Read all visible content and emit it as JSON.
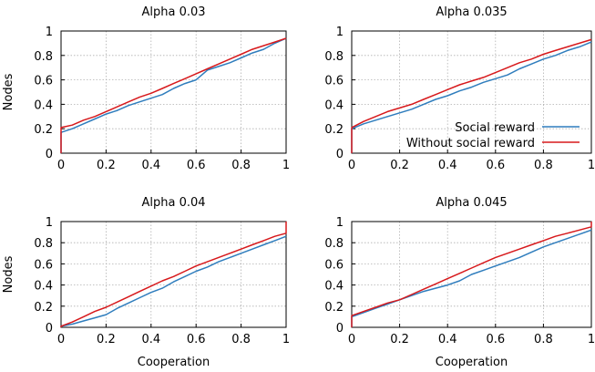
{
  "chart_data": [
    {
      "type": "line",
      "title": "Alpha 0.03",
      "xlabel": "",
      "ylabel": "Nodes",
      "xlim": [
        0,
        1
      ],
      "ylim": [
        0,
        1
      ],
      "xticks": [
        "0",
        "0.2",
        "0.4",
        "0.6",
        "0.8",
        "1"
      ],
      "yticks": [
        "0",
        "0.2",
        "0.4",
        "0.6",
        "0.8",
        "1"
      ],
      "grid": true,
      "series": [
        {
          "name": "Social reward",
          "color": "#2f7dbd",
          "points": [
            [
              0,
              0
            ],
            [
              0,
              0.17
            ],
            [
              0.05,
              0.2
            ],
            [
              0.1,
              0.24
            ],
            [
              0.15,
              0.28
            ],
            [
              0.2,
              0.32
            ],
            [
              0.25,
              0.35
            ],
            [
              0.3,
              0.39
            ],
            [
              0.35,
              0.42
            ],
            [
              0.4,
              0.45
            ],
            [
              0.45,
              0.48
            ],
            [
              0.5,
              0.53
            ],
            [
              0.55,
              0.57
            ],
            [
              0.6,
              0.6
            ],
            [
              0.65,
              0.68
            ],
            [
              0.7,
              0.71
            ],
            [
              0.75,
              0.74
            ],
            [
              0.8,
              0.78
            ],
            [
              0.85,
              0.82
            ],
            [
              0.9,
              0.85
            ],
            [
              0.95,
              0.9
            ],
            [
              1,
              0.94
            ]
          ]
        },
        {
          "name": "Without social reward",
          "color": "#d7191c",
          "points": [
            [
              0,
              0
            ],
            [
              0,
              0.21
            ],
            [
              0.05,
              0.23
            ],
            [
              0.1,
              0.27
            ],
            [
              0.15,
              0.3
            ],
            [
              0.2,
              0.34
            ],
            [
              0.25,
              0.38
            ],
            [
              0.3,
              0.42
            ],
            [
              0.35,
              0.46
            ],
            [
              0.4,
              0.49
            ],
            [
              0.45,
              0.53
            ],
            [
              0.5,
              0.57
            ],
            [
              0.55,
              0.61
            ],
            [
              0.6,
              0.65
            ],
            [
              0.65,
              0.69
            ],
            [
              0.7,
              0.73
            ],
            [
              0.75,
              0.77
            ],
            [
              0.8,
              0.81
            ],
            [
              0.85,
              0.85
            ],
            [
              0.9,
              0.88
            ],
            [
              0.95,
              0.91
            ],
            [
              1,
              0.94
            ]
          ]
        }
      ]
    },
    {
      "type": "line",
      "title": "Alpha 0.035",
      "xlabel": "",
      "ylabel": "",
      "xlim": [
        0,
        1
      ],
      "ylim": [
        0,
        1
      ],
      "xticks": [
        "0",
        "0.2",
        "0.4",
        "0.6",
        "0.8",
        "1"
      ],
      "yticks": [
        "0",
        "0.2",
        "0.4",
        "0.6",
        "0.8",
        "1"
      ],
      "grid": true,
      "legend": {
        "position": "right-middle",
        "entries": [
          "Social reward",
          "Without social reward"
        ]
      },
      "series": [
        {
          "name": "Social reward",
          "color": "#2f7dbd",
          "points": [
            [
              0,
              0
            ],
            [
              0,
              0.2
            ],
            [
              0.05,
              0.24
            ],
            [
              0.1,
              0.27
            ],
            [
              0.15,
              0.3
            ],
            [
              0.2,
              0.33
            ],
            [
              0.25,
              0.36
            ],
            [
              0.3,
              0.4
            ],
            [
              0.35,
              0.44
            ],
            [
              0.4,
              0.47
            ],
            [
              0.45,
              0.51
            ],
            [
              0.5,
              0.54
            ],
            [
              0.55,
              0.58
            ],
            [
              0.6,
              0.61
            ],
            [
              0.65,
              0.64
            ],
            [
              0.7,
              0.69
            ],
            [
              0.75,
              0.73
            ],
            [
              0.8,
              0.77
            ],
            [
              0.85,
              0.8
            ],
            [
              0.9,
              0.84
            ],
            [
              0.95,
              0.87
            ],
            [
              1,
              0.91
            ]
          ]
        },
        {
          "name": "Without social reward",
          "color": "#d7191c",
          "points": [
            [
              0,
              0
            ],
            [
              0,
              0.21
            ],
            [
              0.05,
              0.26
            ],
            [
              0.1,
              0.3
            ],
            [
              0.15,
              0.34
            ],
            [
              0.2,
              0.37
            ],
            [
              0.25,
              0.4
            ],
            [
              0.3,
              0.44
            ],
            [
              0.35,
              0.48
            ],
            [
              0.4,
              0.52
            ],
            [
              0.45,
              0.56
            ],
            [
              0.5,
              0.59
            ],
            [
              0.55,
              0.62
            ],
            [
              0.6,
              0.66
            ],
            [
              0.65,
              0.7
            ],
            [
              0.7,
              0.74
            ],
            [
              0.75,
              0.77
            ],
            [
              0.8,
              0.81
            ],
            [
              0.85,
              0.84
            ],
            [
              0.9,
              0.87
            ],
            [
              0.95,
              0.9
            ],
            [
              1,
              0.93
            ]
          ]
        }
      ]
    },
    {
      "type": "line",
      "title": "Alpha 0.04",
      "xlabel": "Cooperation",
      "ylabel": "Nodes",
      "xlim": [
        0,
        1
      ],
      "ylim": [
        0,
        1
      ],
      "xticks": [
        "0",
        "0.2",
        "0.4",
        "0.6",
        "0.8",
        "1"
      ],
      "yticks": [
        "0",
        "0.2",
        "0.4",
        "0.6",
        "0.8",
        "1"
      ],
      "grid": true,
      "series": [
        {
          "name": "Social reward",
          "color": "#2f7dbd",
          "points": [
            [
              0,
              0
            ],
            [
              0,
              0.01
            ],
            [
              0.05,
              0.03
            ],
            [
              0.1,
              0.06
            ],
            [
              0.15,
              0.09
            ],
            [
              0.2,
              0.12
            ],
            [
              0.25,
              0.18
            ],
            [
              0.3,
              0.23
            ],
            [
              0.35,
              0.28
            ],
            [
              0.4,
              0.33
            ],
            [
              0.45,
              0.37
            ],
            [
              0.5,
              0.43
            ],
            [
              0.55,
              0.48
            ],
            [
              0.6,
              0.53
            ],
            [
              0.65,
              0.57
            ],
            [
              0.7,
              0.62
            ],
            [
              0.75,
              0.66
            ],
            [
              0.8,
              0.7
            ],
            [
              0.85,
              0.74
            ],
            [
              0.9,
              0.78
            ],
            [
              0.95,
              0.82
            ],
            [
              1,
              0.86
            ]
          ]
        },
        {
          "name": "Without social reward",
          "color": "#d7191c",
          "points": [
            [
              0,
              0
            ],
            [
              0,
              0.01
            ],
            [
              0.05,
              0.05
            ],
            [
              0.1,
              0.1
            ],
            [
              0.15,
              0.15
            ],
            [
              0.2,
              0.19
            ],
            [
              0.25,
              0.24
            ],
            [
              0.3,
              0.29
            ],
            [
              0.35,
              0.34
            ],
            [
              0.4,
              0.39
            ],
            [
              0.45,
              0.44
            ],
            [
              0.5,
              0.48
            ],
            [
              0.55,
              0.53
            ],
            [
              0.6,
              0.58
            ],
            [
              0.65,
              0.62
            ],
            [
              0.7,
              0.66
            ],
            [
              0.75,
              0.7
            ],
            [
              0.8,
              0.74
            ],
            [
              0.85,
              0.78
            ],
            [
              0.9,
              0.82
            ],
            [
              0.95,
              0.86
            ],
            [
              1,
              0.89
            ],
            [
              1,
              1
            ]
          ]
        }
      ]
    },
    {
      "type": "line",
      "title": "Alpha 0.045",
      "xlabel": "Cooperation",
      "ylabel": "",
      "xlim": [
        0,
        1
      ],
      "ylim": [
        0,
        1
      ],
      "xticks": [
        "0",
        "0.2",
        "0.4",
        "0.6",
        "0.8",
        "1"
      ],
      "yticks": [
        "0",
        "0.2",
        "0.4",
        "0.6",
        "0.8",
        "1"
      ],
      "grid": true,
      "series": [
        {
          "name": "Social reward",
          "color": "#2f7dbd",
          "points": [
            [
              0,
              0
            ],
            [
              0,
              0.1
            ],
            [
              0.05,
              0.14
            ],
            [
              0.1,
              0.18
            ],
            [
              0.15,
              0.22
            ],
            [
              0.2,
              0.26
            ],
            [
              0.25,
              0.3
            ],
            [
              0.3,
              0.34
            ],
            [
              0.35,
              0.37
            ],
            [
              0.4,
              0.4
            ],
            [
              0.45,
              0.44
            ],
            [
              0.5,
              0.5
            ],
            [
              0.55,
              0.54
            ],
            [
              0.6,
              0.58
            ],
            [
              0.65,
              0.62
            ],
            [
              0.7,
              0.66
            ],
            [
              0.75,
              0.71
            ],
            [
              0.8,
              0.76
            ],
            [
              0.85,
              0.8
            ],
            [
              0.9,
              0.84
            ],
            [
              0.95,
              0.88
            ],
            [
              1,
              0.92
            ]
          ]
        },
        {
          "name": "Without social reward",
          "color": "#d7191c",
          "points": [
            [
              0,
              0
            ],
            [
              0,
              0.11
            ],
            [
              0.05,
              0.15
            ],
            [
              0.1,
              0.19
            ],
            [
              0.15,
              0.23
            ],
            [
              0.2,
              0.26
            ],
            [
              0.25,
              0.31
            ],
            [
              0.3,
              0.36
            ],
            [
              0.35,
              0.41
            ],
            [
              0.4,
              0.46
            ],
            [
              0.45,
              0.51
            ],
            [
              0.5,
              0.56
            ],
            [
              0.55,
              0.61
            ],
            [
              0.6,
              0.66
            ],
            [
              0.65,
              0.7
            ],
            [
              0.7,
              0.74
            ],
            [
              0.75,
              0.78
            ],
            [
              0.8,
              0.82
            ],
            [
              0.85,
              0.86
            ],
            [
              0.9,
              0.89
            ],
            [
              0.95,
              0.92
            ],
            [
              1,
              0.95
            ],
            [
              1,
              1
            ]
          ]
        }
      ]
    }
  ]
}
